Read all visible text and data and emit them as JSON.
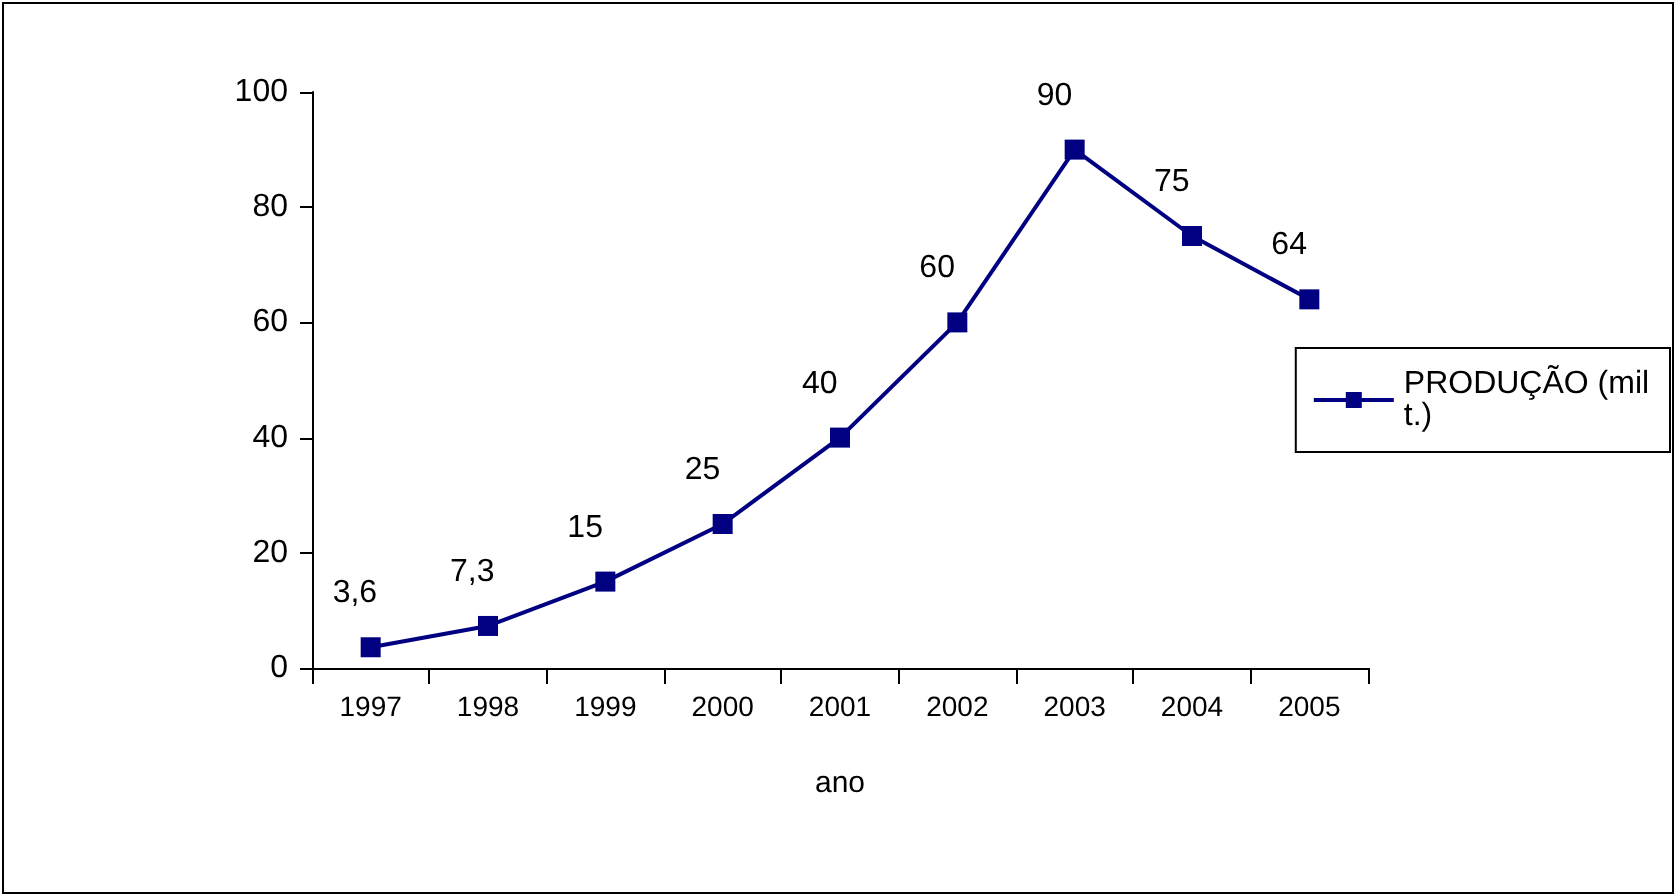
{
  "chart_data": {
    "type": "line",
    "xlabel": "ano",
    "categories": [
      "1997",
      "1998",
      "1999",
      "2000",
      "2001",
      "2002",
      "2003",
      "2004",
      "2005"
    ],
    "series": [
      {
        "name": "PRODUÇÃO (mil t.)",
        "color": "#000080",
        "values": [
          3.6,
          7.3,
          15,
          25,
          40,
          60,
          90,
          75,
          64
        ],
        "value_labels": [
          "3,6",
          "7,3",
          "15",
          "25",
          "40",
          "60",
          "90",
          "75",
          "64"
        ]
      }
    ],
    "ylim": [
      0,
      100
    ],
    "yticks": [
      0,
      20,
      40,
      60,
      80,
      100
    ],
    "grid": false,
    "legend": "right",
    "marker": "square",
    "line_style": "solid"
  }
}
